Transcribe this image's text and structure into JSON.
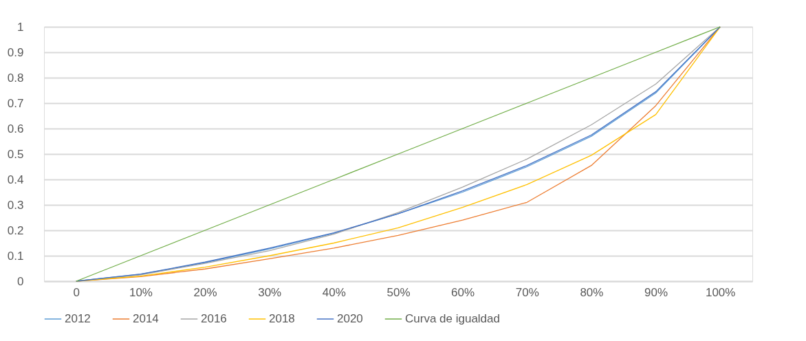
{
  "chart_data": {
    "type": "line",
    "categories": [
      "0",
      "10%",
      "20%",
      "30%",
      "40%",
      "50%",
      "60%",
      "70%",
      "80%",
      "90%",
      "100%"
    ],
    "series": [
      {
        "name": "2012",
        "color": "#5b9bd5",
        "values": [
          0,
          0.027,
          0.073,
          0.127,
          0.188,
          0.265,
          0.35,
          0.45,
          0.57,
          0.74,
          1
        ]
      },
      {
        "name": "2014",
        "color": "#ed7d31",
        "values": [
          0,
          0.018,
          0.048,
          0.088,
          0.13,
          0.18,
          0.24,
          0.31,
          0.455,
          0.69,
          1
        ]
      },
      {
        "name": "2016",
        "color": "#a5a5a5",
        "values": [
          0,
          0.025,
          0.07,
          0.12,
          0.185,
          0.27,
          0.37,
          0.48,
          0.615,
          0.775,
          1
        ]
      },
      {
        "name": "2018",
        "color": "#ffc000",
        "values": [
          0,
          0.02,
          0.055,
          0.1,
          0.15,
          0.21,
          0.29,
          0.38,
          0.495,
          0.655,
          1
        ]
      },
      {
        "name": "2020",
        "color": "#4472c4",
        "values": [
          0,
          0.028,
          0.075,
          0.13,
          0.19,
          0.265,
          0.355,
          0.455,
          0.575,
          0.745,
          1
        ]
      },
      {
        "name": "Curva de igualdad",
        "color": "#70ad47",
        "values": [
          0,
          0.1,
          0.2,
          0.3,
          0.4,
          0.5,
          0.6,
          0.7,
          0.8,
          0.9,
          1
        ]
      }
    ],
    "ylim": [
      0,
      1
    ],
    "yticks": [
      0,
      0.1,
      0.2,
      0.3,
      0.4,
      0.5,
      0.6,
      0.7,
      0.8,
      0.9,
      1
    ],
    "grid": "y",
    "legend": "bottom",
    "marker": "none",
    "line_style": "solid"
  }
}
